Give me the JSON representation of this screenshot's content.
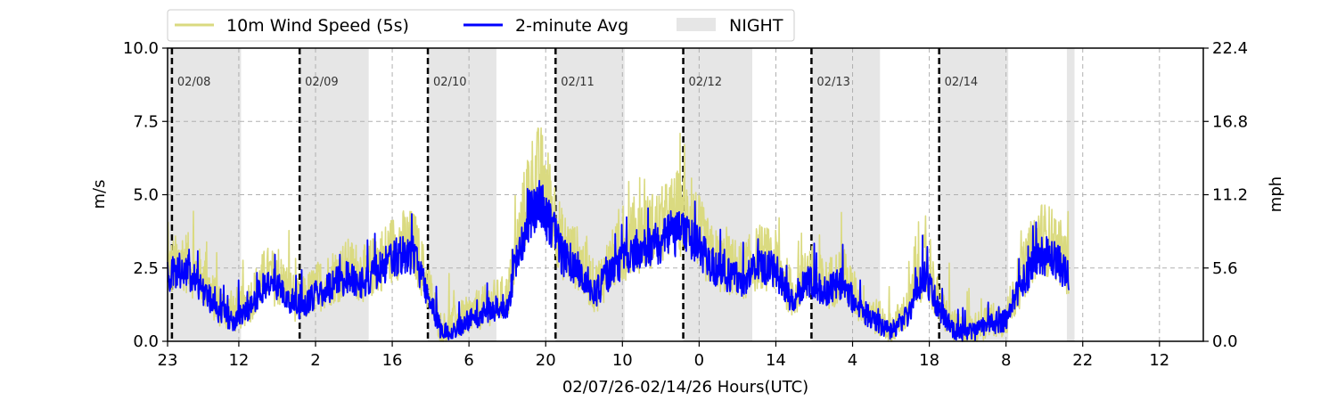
{
  "chart_data": {
    "type": "line",
    "xlabel": "02/07/26-02/14/26  Hours(UTC)",
    "ylabel_left": "m/s",
    "ylabel_right": "mph",
    "ylim": [
      0,
      10
    ],
    "yticks_left": [
      "0.0",
      "2.5",
      "5.0",
      "7.5",
      "10.0"
    ],
    "yticks_right": [
      "0.0",
      "5.6",
      "11.2",
      "16.8",
      "22.4"
    ],
    "xlim_hours": [
      0,
      189
    ],
    "xticks": [
      {
        "h": 0,
        "label": "23"
      },
      {
        "h": 13,
        "label": "12"
      },
      {
        "h": 27,
        "label": "2"
      },
      {
        "h": 41,
        "label": "16"
      },
      {
        "h": 55,
        "label": "6"
      },
      {
        "h": 69,
        "label": "20"
      },
      {
        "h": 83,
        "label": "10"
      },
      {
        "h": 97,
        "label": "0"
      },
      {
        "h": 111,
        "label": "14"
      },
      {
        "h": 125,
        "label": "4"
      },
      {
        "h": 139,
        "label": "18"
      },
      {
        "h": 153,
        "label": "8"
      },
      {
        "h": 167,
        "label": "22"
      },
      {
        "h": 181,
        "label": "12"
      }
    ],
    "day_markers": [
      {
        "h": 0.8,
        "label": "02/08"
      },
      {
        "h": 24.1,
        "label": "02/09"
      },
      {
        "h": 47.5,
        "label": "02/10"
      },
      {
        "h": 70.8,
        "label": "02/11"
      },
      {
        "h": 94.1,
        "label": "02/12"
      },
      {
        "h": 117.5,
        "label": "02/13"
      },
      {
        "h": 140.8,
        "label": "02/14"
      }
    ],
    "night_periods": [
      [
        0,
        13.4
      ],
      [
        24.1,
        36.7
      ],
      [
        47.5,
        60.0
      ],
      [
        70.8,
        83.4
      ],
      [
        94.1,
        106.7
      ],
      [
        117.5,
        130.0
      ],
      [
        140.8,
        153.4
      ],
      [
        164.1,
        165.5
      ]
    ],
    "legend": {
      "position": "top-left",
      "items": [
        {
          "label": "10m Wind Speed (5s)",
          "color": "#dada80",
          "kind": "line"
        },
        {
          "label": "2-minute Avg",
          "color": "#0000ff",
          "kind": "line"
        },
        {
          "label": "NIGHT",
          "color": "#e6e6e6",
          "kind": "patch"
        }
      ]
    },
    "series": [
      {
        "name": "10m Wind Speed (5s)",
        "color": "#dada80",
        "x_hours": [
          0,
          3,
          6,
          9,
          12,
          15,
          18,
          21,
          24,
          27,
          30,
          33,
          36,
          39,
          42,
          45,
          47,
          50,
          53,
          56,
          59,
          62,
          64,
          66,
          68,
          70,
          72,
          75,
          78,
          81,
          84,
          87,
          90,
          93,
          96,
          99,
          102,
          105,
          108,
          111,
          114,
          117,
          120,
          123,
          126,
          129,
          132,
          135,
          138,
          141,
          144,
          147,
          150,
          153,
          156,
          159,
          162,
          164.5
        ],
        "values": [
          2.4,
          2.8,
          2.2,
          1.3,
          0.9,
          1.4,
          2.3,
          2.0,
          1.3,
          1.8,
          2.2,
          2.5,
          2.3,
          2.8,
          3.3,
          3.3,
          2.2,
          0.4,
          0.7,
          1.0,
          1.3,
          1.5,
          3.4,
          5.3,
          5.7,
          4.7,
          3.3,
          2.8,
          1.8,
          2.7,
          3.4,
          3.7,
          3.9,
          4.4,
          4.1,
          2.9,
          2.6,
          2.4,
          2.9,
          2.7,
          1.6,
          2.4,
          1.9,
          2.3,
          1.4,
          0.9,
          0.4,
          1.1,
          2.6,
          1.2,
          0.4,
          0.4,
          0.7,
          0.8,
          2.3,
          3.6,
          3.3,
          2.5
        ]
      },
      {
        "name": "2-minute Avg",
        "color": "#0000ff",
        "x_hours": [
          0,
          3,
          6,
          9,
          12,
          15,
          18,
          21,
          24,
          27,
          30,
          33,
          36,
          39,
          42,
          45,
          47,
          50,
          53,
          56,
          59,
          62,
          64,
          66,
          68,
          70,
          72,
          75,
          78,
          81,
          84,
          87,
          90,
          93,
          96,
          99,
          102,
          105,
          108,
          111,
          114,
          117,
          120,
          123,
          126,
          129,
          132,
          135,
          138,
          141,
          144,
          147,
          150,
          153,
          156,
          159,
          162,
          164.5
        ],
        "values": [
          2.2,
          2.5,
          1.9,
          1.1,
          0.7,
          1.2,
          2.0,
          1.7,
          1.1,
          1.6,
          1.9,
          2.2,
          2.0,
          2.5,
          2.9,
          3.0,
          1.9,
          0.3,
          0.5,
          0.8,
          1.1,
          1.2,
          3.0,
          4.3,
          4.6,
          4.0,
          2.9,
          2.5,
          1.6,
          2.4,
          3.0,
          3.2,
          3.4,
          3.7,
          3.5,
          2.6,
          2.3,
          2.1,
          2.6,
          2.4,
          1.4,
          2.1,
          1.7,
          2.0,
          1.2,
          0.7,
          0.3,
          0.9,
          2.3,
          1.0,
          0.3,
          0.3,
          0.6,
          0.7,
          2.0,
          3.0,
          2.8,
          2.2
        ]
      }
    ]
  }
}
